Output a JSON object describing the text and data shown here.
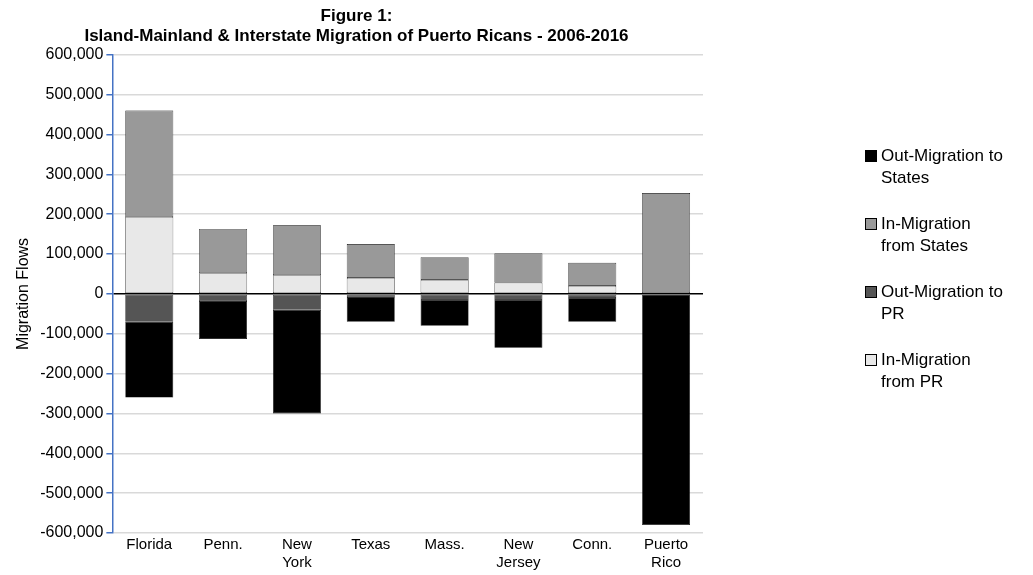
{
  "chart_data": {
    "type": "bar",
    "stacked": true,
    "title": "Figure 1:",
    "subtitle": "Island-Mainland & Interstate Migration of Puerto Ricans - 2006-2016",
    "ylabel": "Migration Flows",
    "categories": [
      "Florida",
      "Penn.",
      "New York",
      "Texas",
      "Mass.",
      "New Jersey",
      "Conn.",
      "Puerto Rico"
    ],
    "series": [
      {
        "name": "In-Migration from PR",
        "color": "#e8e8e8",
        "values": [
          193000,
          52000,
          47000,
          40000,
          35000,
          28000,
          20000,
          null
        ]
      },
      {
        "name": "Out-Migration to PR",
        "color": "#555555",
        "values": [
          -70000,
          -18000,
          -40000,
          -8000,
          -15000,
          -15000,
          -10000,
          null
        ]
      },
      {
        "name": "In-Migration from States",
        "color": "#999999",
        "values": [
          267000,
          111000,
          125000,
          85000,
          57000,
          74000,
          58000,
          253000
        ]
      },
      {
        "name": "Out-Migration to States",
        "color": "#000000",
        "values": [
          -190000,
          -95000,
          -260000,
          -62000,
          -65000,
          -120000,
          -60000,
          -580000
        ]
      }
    ],
    "ylim": [
      -600000,
      600000
    ],
    "yticks": [
      {
        "value": -600000,
        "label": "-600,000"
      },
      {
        "value": -500000,
        "label": "-500,000"
      },
      {
        "value": -400000,
        "label": "-400,000"
      },
      {
        "value": -300000,
        "label": "-300,000"
      },
      {
        "value": -200000,
        "label": "-200,000"
      },
      {
        "value": -100000,
        "label": "-100,000"
      },
      0,
      {
        "value": 100000,
        "label": "100,000"
      },
      {
        "value": 200000,
        "label": "200,000"
      },
      {
        "value": 300000,
        "label": "300,000"
      },
      {
        "value": 400000,
        "label": "400,000"
      },
      {
        "value": 500000,
        "label": "500,000"
      },
      {
        "value": 600000,
        "label": "600,000"
      }
    ],
    "grid": "y",
    "legend": "right"
  }
}
